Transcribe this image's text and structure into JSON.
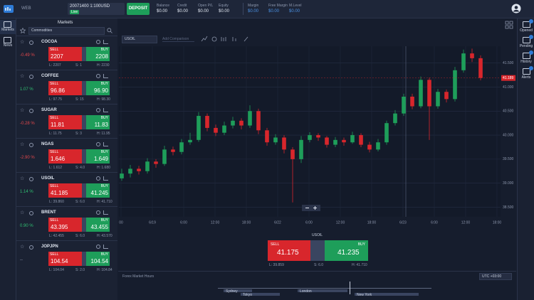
{
  "header": {
    "account": "20071400 1:100USD",
    "account_type": "Live",
    "deposit": "DEPOSIT",
    "stats": [
      {
        "label": "Balance",
        "value": "$0.00"
      },
      {
        "label": "Credit",
        "value": "$0.00"
      },
      {
        "label": "Open P/L",
        "value": "$0.00"
      },
      {
        "label": "Equity",
        "value": "$0.00"
      },
      {
        "label": "Margin",
        "value": "$0.00"
      },
      {
        "label": "Free Margin",
        "value": "$0.00"
      },
      {
        "label": "M.Level",
        "value": "$0.00"
      }
    ]
  },
  "nav": {
    "left": [
      "Markets",
      "News"
    ],
    "right": [
      "Opened",
      "Pending",
      "History",
      "Alerts"
    ]
  },
  "markets": {
    "title": "Markets",
    "filter": "Commodities",
    "rows": [
      {
        "name": "COCOA",
        "change": "-0.49 %",
        "sell_label": "SELL",
        "sell": "2207",
        "buy_label": "BUY",
        "buy": "2208",
        "low": "L: 2207",
        "spread": "S: 1",
        "high": "H: 2230"
      },
      {
        "name": "COFFEE",
        "change": "1.07 %",
        "sell_label": "SELL",
        "sell": "96.86",
        "buy_label": "BUY",
        "buy": "96.90",
        "low": "L: 97.75",
        "spread": "S: 15",
        "high": "H: 98.30"
      },
      {
        "name": "SUGAR",
        "change": "-0.28 %",
        "sell_label": "SELL",
        "sell": "11.81",
        "buy_label": "BUY",
        "buy": "11.83",
        "low": "L: 11.75",
        "spread": "S: 3",
        "high": "H: 11.95"
      },
      {
        "name": "NGAS",
        "change": "-2.90 %",
        "sell_label": "SELL",
        "sell": "1.646",
        "buy_label": "BUY",
        "buy": "1.649",
        "low": "L: 1.612",
        "spread": "S: 4.0",
        "high": "H: 1.680"
      },
      {
        "name": "USOIL",
        "change": "1.14 %",
        "sell_label": "SELL",
        "sell": "41.185",
        "buy_label": "BUY",
        "buy": "41.245",
        "low": "L: 39.860",
        "spread": "S: 6.0",
        "high": "H: 41.710"
      },
      {
        "name": "BRENT",
        "change": "0.90 %",
        "sell_label": "SELL",
        "sell": "43.395",
        "buy_label": "BUY",
        "buy": "43.455",
        "low": "L: 42.455",
        "spread": "S: 6.0",
        "high": "H: 43.570"
      },
      {
        "name": "JOPJPN",
        "change": "--",
        "sell_label": "SELL",
        "sell": "104.54",
        "buy_label": "BUY",
        "buy": "104.54",
        "low": "L: 104.04",
        "spread": "S: 2.0",
        "high": "H: 104.84"
      }
    ]
  },
  "chart_data": {
    "type": "candlestick",
    "symbol": "USOIL",
    "comparison": "Add Comparison",
    "open": [
      39.1,
      39.2,
      39.3,
      39.25,
      39.45,
      39.4,
      39.7,
      39.65,
      39.85,
      39.9,
      40.4,
      40.15,
      40.05,
      40.2,
      40.3,
      40.2,
      40.5,
      40.1,
      39.85,
      39.95,
      39.7,
      39.5,
      39.9,
      40.0,
      39.95,
      39.8,
      39.9,
      39.85,
      40.0,
      39.8,
      39.7,
      39.85,
      40.25,
      40.45,
      40.8,
      40.6,
      41.15,
      40.6,
      40.9,
      40.75,
      41.35,
      41.7,
      41.6
    ],
    "high": [
      39.3,
      39.38,
      39.36,
      39.52,
      39.5,
      39.78,
      39.76,
      39.92,
      40.05,
      40.48,
      40.45,
      40.22,
      40.28,
      40.38,
      40.35,
      40.62,
      40.55,
      40.15,
      40.02,
      40.0,
      39.75,
      39.98,
      40.06,
      40.04,
      39.98,
      39.96,
      39.95,
      40.07,
      40.04,
      39.86,
      39.92,
      40.3,
      40.52,
      40.86,
      40.86,
      41.22,
      41.2,
      40.96,
      40.95,
      41.42,
      41.78,
      41.8,
      41.66
    ],
    "low": [
      39.05,
      39.12,
      39.18,
      39.2,
      39.32,
      39.36,
      39.58,
      39.6,
      39.8,
      39.86,
      40.08,
      39.98,
      40.0,
      40.14,
      40.12,
      40.15,
      40.02,
      39.78,
      39.8,
      39.62,
      38.6,
      39.42,
      39.85,
      39.88,
      39.74,
      39.75,
      39.78,
      39.82,
      39.75,
      39.64,
      39.66,
      39.8,
      40.2,
      40.4,
      40.54,
      40.56,
      39.9,
      40.55,
      40.68,
      40.7,
      41.3,
      41.52,
      41.14
    ],
    "close": [
      39.2,
      39.3,
      39.25,
      39.45,
      39.4,
      39.7,
      39.65,
      39.85,
      39.9,
      40.4,
      40.15,
      40.05,
      40.2,
      40.3,
      40.2,
      40.5,
      40.1,
      39.85,
      39.95,
      39.7,
      39.5,
      39.9,
      40.0,
      39.95,
      39.8,
      39.9,
      39.85,
      40.0,
      39.8,
      39.7,
      39.85,
      40.25,
      40.45,
      40.8,
      40.6,
      41.15,
      40.6,
      40.9,
      40.75,
      41.35,
      41.7,
      41.6,
      41.19
    ],
    "up_color": "#1e9e5a",
    "down_color": "#d8262c",
    "last_price": 41.189,
    "ylim": [
      38.3,
      41.85
    ],
    "yticks": [
      {
        "value": 38.5,
        "label": "38.500"
      },
      {
        "value": 39,
        "label": "39.000"
      },
      {
        "value": 39.5,
        "label": "39.500"
      },
      {
        "value": 40,
        "label": "40.000"
      },
      {
        "value": 40.5,
        "label": "40.500"
      },
      {
        "value": 41,
        "label": "41.000"
      },
      {
        "value": 41.5,
        "label": "41.500"
      }
    ],
    "x_labels": [
      "00",
      "6/19",
      "6:00",
      "12:00",
      "18:00",
      "6/22",
      "6:00",
      "12:00",
      "18:00",
      "6/23",
      "6:00",
      "12:00",
      "18:00"
    ],
    "grid": true
  },
  "trade_panel": {
    "symbol": "USOIL",
    "sell_label": "SELL",
    "sell": "41.175",
    "buy_label": "BUY",
    "buy": "41.235",
    "low": "L: 39.859",
    "spread": "S: 6.0",
    "high": "H: 41.710"
  },
  "market_hours": {
    "title": "Forex Market Hours",
    "timezone": "UTC +03:00",
    "sessions": [
      "Sydney",
      "Tokyo",
      "London",
      "New York"
    ]
  }
}
